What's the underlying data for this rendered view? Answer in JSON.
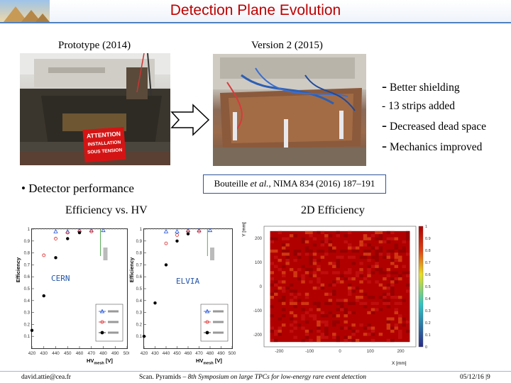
{
  "slide": {
    "title": "Detection Plane Evolution",
    "label_left": "Prototype (2014)",
    "label_right": "Version 2 (2015)",
    "sign_text": [
      "ATTENTION",
      "INSTALLATION",
      "SOUS TENSION"
    ],
    "bullets": [
      "Better shielding",
      "13 strips added",
      "Decreased dead space",
      "Mechanics improved"
    ],
    "performance_bullet": "Detector performance",
    "reference": {
      "authors": "Bouteille ",
      "etal": "et al.",
      "journal": ", NIMA 834 (2016) 187–191"
    },
    "efficiency_title": "Efficiency vs. HV",
    "eff2d_title": "2D Efficiency"
  },
  "plots": {
    "cern_label": "CERN",
    "elvia_label": "ELVIA",
    "ylabel": "Efficiency",
    "xlabel_main": "HV",
    "xlabel_sub": "mesh",
    "xlabel_unit": " [V]",
    "heat_ylabel": "Y [mm]",
    "heat_xlabel": "X [mm]"
  },
  "chart_data": [
    {
      "type": "scatter",
      "panel": "CERN",
      "xlabel": "HVmesh [V]",
      "ylabel": "Efficiency",
      "xlim": [
        420,
        500
      ],
      "ylim": [
        0,
        1
      ],
      "x_ticks": [
        "420",
        "430",
        "440",
        "450",
        "460",
        "470",
        "480",
        "490",
        "500"
      ],
      "y_ticks": [
        "0.1",
        "0.2",
        "0.3",
        "0.4",
        "0.5",
        "0.6",
        "0.7",
        "0.8",
        "0.9",
        "1"
      ],
      "series": [
        {
          "color": "#1f4fd6",
          "marker": "triangle",
          "points": [
            [
              440,
              0.98
            ],
            [
              450,
              0.98
            ],
            [
              460,
              0.99
            ],
            [
              470,
              0.99
            ],
            [
              480,
              0.99
            ]
          ]
        },
        {
          "color": "#d62020",
          "marker": "circle",
          "points": [
            [
              430,
              0.78
            ],
            [
              440,
              0.92
            ],
            [
              450,
              0.97
            ],
            [
              460,
              0.98
            ],
            [
              470,
              0.98
            ]
          ]
        },
        {
          "color": "#000000",
          "marker": "circle",
          "points": [
            [
              420,
              0.15
            ],
            [
              430,
              0.44
            ],
            [
              440,
              0.76
            ],
            [
              450,
              0.92
            ],
            [
              460,
              0.97
            ]
          ]
        }
      ]
    },
    {
      "type": "scatter",
      "panel": "ELVIA",
      "xlabel": "HVmesh [V]",
      "ylabel": "Efficiency",
      "xlim": [
        420,
        500
      ],
      "ylim": [
        0,
        1
      ],
      "x_ticks": [
        "420",
        "430",
        "440",
        "450",
        "460",
        "470",
        "480",
        "490",
        "500"
      ],
      "y_ticks": [
        "0.1",
        "0.2",
        "0.3",
        "0.4",
        "0.5",
        "0.6",
        "0.7",
        "0.8",
        "0.9",
        "1"
      ],
      "series": [
        {
          "color": "#1f4fd6",
          "marker": "triangle",
          "points": [
            [
              440,
              0.98
            ],
            [
              450,
              0.98
            ],
            [
              460,
              0.99
            ],
            [
              470,
              0.99
            ],
            [
              480,
              0.99
            ]
          ]
        },
        {
          "color": "#d62020",
          "marker": "circle",
          "points": [
            [
              440,
              0.88
            ],
            [
              450,
              0.95
            ],
            [
              460,
              0.98
            ],
            [
              470,
              0.98
            ]
          ]
        },
        {
          "color": "#000000",
          "marker": "circle",
          "points": [
            [
              420,
              0.1
            ],
            [
              430,
              0.38
            ],
            [
              440,
              0.7
            ],
            [
              450,
              0.9
            ],
            [
              460,
              0.96
            ]
          ]
        }
      ]
    },
    {
      "type": "heatmap",
      "panel": "2D Efficiency",
      "xlabel": "X [mm]",
      "ylabel": "Y [mm]",
      "xlim": [
        -250,
        250
      ],
      "ylim": [
        -250,
        250
      ],
      "x_ticks": [
        "-200",
        "-100",
        "0",
        "100",
        "200"
      ],
      "y_ticks": [
        "-200",
        "-100",
        "0",
        "100",
        "200"
      ],
      "z_ticks": [
        "0",
        "0.1",
        "0.2",
        "0.3",
        "0.4",
        "0.5",
        "0.6",
        "0.7",
        "0.8",
        "0.9",
        "1"
      ],
      "zlim": [
        0,
        1
      ],
      "colors": {
        "low": "#2a2a8a",
        "mid": "#2ec4c4",
        "high": "#b00000"
      },
      "typical_value": 0.95
    }
  ],
  "footer": {
    "email": "david.attie@cea.fr",
    "conference": "Scan. Pyramids – ",
    "conference_rest": " Symposium on large TPCs for low-energy rare event detection",
    "edition": "8th",
    "date": "05/12/16 |9"
  }
}
